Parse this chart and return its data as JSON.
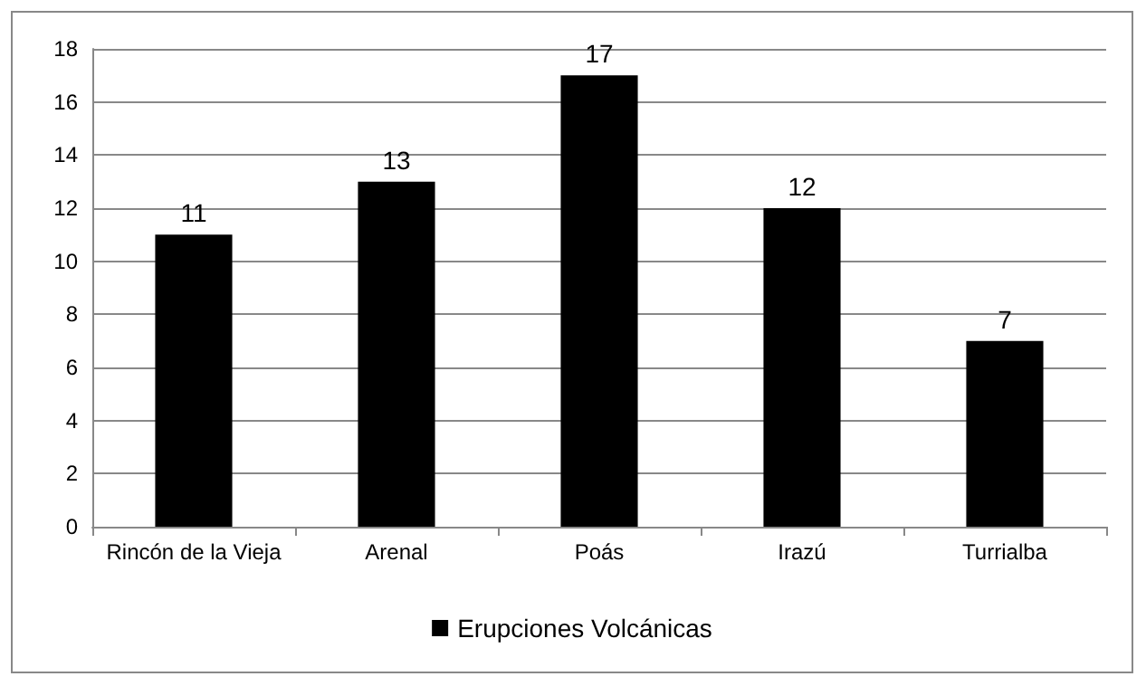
{
  "chart_data": {
    "type": "bar",
    "categories": [
      "Rincón de la Vieja",
      "Arenal",
      "Poás",
      "Irazú",
      "Turrialba"
    ],
    "series": [
      {
        "name": "Erupciones Volcánicas",
        "color": "#000000",
        "values": [
          11,
          13,
          17,
          12,
          7
        ]
      }
    ],
    "ylim": [
      0,
      18
    ],
    "yticks": [
      0,
      2,
      4,
      6,
      8,
      10,
      12,
      14,
      16,
      18
    ],
    "grid": "y",
    "legend": "bottom",
    "data_labels": true
  }
}
